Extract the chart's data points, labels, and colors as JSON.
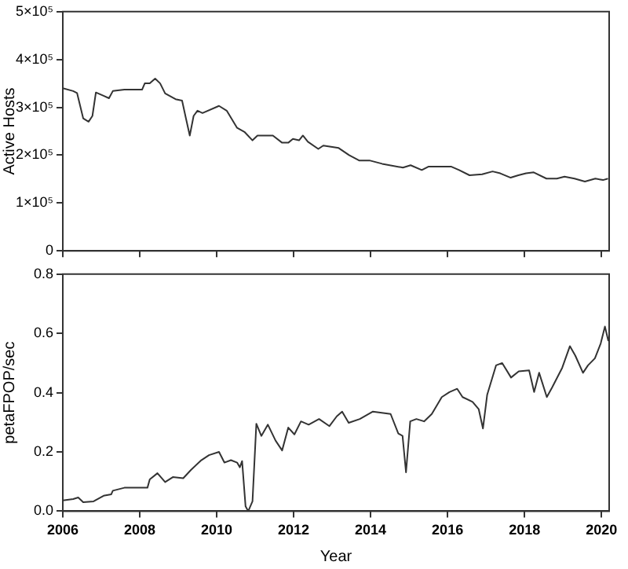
{
  "chart_data": [
    {
      "type": "line",
      "ylabel": "Active Hosts",
      "xlim": [
        2006,
        2020.2
      ],
      "xticks": [
        2006,
        2008,
        2010,
        2012,
        2014,
        2016,
        2018,
        2020
      ],
      "ylim": [
        0,
        500000
      ],
      "yticks": [
        0,
        {
          "value": 100000,
          "label": "1×10⁵"
        },
        {
          "value": 200000,
          "label": "2×10⁵"
        },
        {
          "value": 300000,
          "label": "3×10⁵"
        },
        {
          "value": 400000,
          "label": "4×10⁵"
        },
        {
          "value": 500000,
          "label": "5×10⁵"
        }
      ],
      "tick_labels": "y",
      "grid": false,
      "legend": false,
      "series": [
        {
          "color": "#333333",
          "x": [
            2006.0,
            2006.27,
            2006.37,
            2006.53,
            2006.67,
            2006.77,
            2006.86,
            2007.06,
            2007.2,
            2007.3,
            2007.6,
            2008.06,
            2008.13,
            2008.26,
            2008.4,
            2008.53,
            2008.66,
            2008.93,
            2009.1,
            2009.2,
            2009.3,
            2009.4,
            2009.5,
            2009.63,
            2010.06,
            2010.26,
            2010.53,
            2010.73,
            2010.93,
            2011.06,
            2011.46,
            2011.7,
            2011.86,
            2011.98,
            2012.14,
            2012.24,
            2012.37,
            2012.64,
            2012.77,
            2013.17,
            2013.44,
            2013.7,
            2013.97,
            2014.3,
            2014.84,
            2015.04,
            2015.33,
            2015.5,
            2016.1,
            2016.3,
            2016.57,
            2016.9,
            2017.17,
            2017.37,
            2017.64,
            2017.84,
            2018.04,
            2018.24,
            2018.57,
            2018.84,
            2019.04,
            2019.3,
            2019.57,
            2019.84,
            2020.04,
            2020.17
          ],
          "values": [
            340000,
            334000,
            330000,
            277000,
            270000,
            282000,
            331000,
            324000,
            319000,
            334000,
            337000,
            337000,
            350000,
            350000,
            360000,
            350000,
            329000,
            317000,
            314000,
            277000,
            241000,
            282000,
            293000,
            288000,
            303000,
            293000,
            257000,
            248000,
            231000,
            241000,
            241000,
            226000,
            226000,
            234000,
            231000,
            241000,
            228000,
            213000,
            220000,
            215000,
            200000,
            189000,
            189000,
            182000,
            174000,
            179000,
            169000,
            176000,
            176000,
            169000,
            158000,
            160000,
            166000,
            162000,
            153000,
            158000,
            162000,
            164000,
            151000,
            151000,
            155000,
            151000,
            145000,
            151000,
            148000,
            151000
          ]
        }
      ]
    },
    {
      "type": "line",
      "xlabel": "Year",
      "ylabel": "petaFPOP/sec",
      "xlim": [
        2006,
        2020.2
      ],
      "xticks": [
        2006,
        2008,
        2010,
        2012,
        2014,
        2016,
        2018,
        2020
      ],
      "ylim": [
        0,
        0.8
      ],
      "yticks": [
        {
          "value": 0,
          "label": "0.0"
        },
        {
          "value": 0.2,
          "label": "0.2"
        },
        {
          "value": 0.4,
          "label": "0.4"
        },
        {
          "value": 0.6,
          "label": "0.6"
        },
        {
          "value": 0.8,
          "label": "0.8"
        }
      ],
      "grid": false,
      "legend": false,
      "series": [
        {
          "color": "#333333",
          "x": [
            2006.0,
            2006.27,
            2006.4,
            2006.53,
            2006.8,
            2007.06,
            2007.26,
            2007.3,
            2007.6,
            2008.2,
            2008.26,
            2008.46,
            2008.66,
            2008.86,
            2009.13,
            2009.33,
            2009.6,
            2009.8,
            2010.06,
            2010.2,
            2010.37,
            2010.53,
            2010.6,
            2010.66,
            2010.75,
            2010.82,
            2010.93,
            2011.03,
            2011.16,
            2011.33,
            2011.53,
            2011.7,
            2011.86,
            2012.02,
            2012.19,
            2012.39,
            2012.66,
            2012.93,
            2013.12,
            2013.26,
            2013.43,
            2013.72,
            2014.06,
            2014.52,
            2014.72,
            2014.83,
            2014.92,
            2015.03,
            2015.19,
            2015.39,
            2015.59,
            2015.85,
            2016.05,
            2016.25,
            2016.39,
            2016.65,
            2016.81,
            2016.92,
            2017.03,
            2017.26,
            2017.42,
            2017.65,
            2017.85,
            2018.12,
            2018.25,
            2018.38,
            2018.58,
            2018.72,
            2018.98,
            2019.18,
            2019.32,
            2019.52,
            2019.65,
            2019.83,
            2019.98,
            2020.09,
            2020.18
          ],
          "values": [
            0.036,
            0.041,
            0.046,
            0.03,
            0.033,
            0.052,
            0.057,
            0.069,
            0.079,
            0.079,
            0.107,
            0.128,
            0.098,
            0.115,
            0.111,
            0.139,
            0.172,
            0.189,
            0.2,
            0.164,
            0.172,
            0.164,
            0.148,
            0.169,
            0.016,
            0.0,
            0.033,
            0.295,
            0.254,
            0.292,
            0.238,
            0.205,
            0.282,
            0.259,
            0.303,
            0.292,
            0.311,
            0.287,
            0.32,
            0.336,
            0.298,
            0.311,
            0.336,
            0.328,
            0.262,
            0.254,
            0.131,
            0.303,
            0.311,
            0.303,
            0.328,
            0.385,
            0.402,
            0.413,
            0.385,
            0.369,
            0.344,
            0.279,
            0.393,
            0.492,
            0.5,
            0.451,
            0.472,
            0.475,
            0.402,
            0.467,
            0.385,
            0.418,
            0.484,
            0.557,
            0.525,
            0.467,
            0.492,
            0.516,
            0.566,
            0.623,
            0.574
          ]
        }
      ]
    }
  ]
}
